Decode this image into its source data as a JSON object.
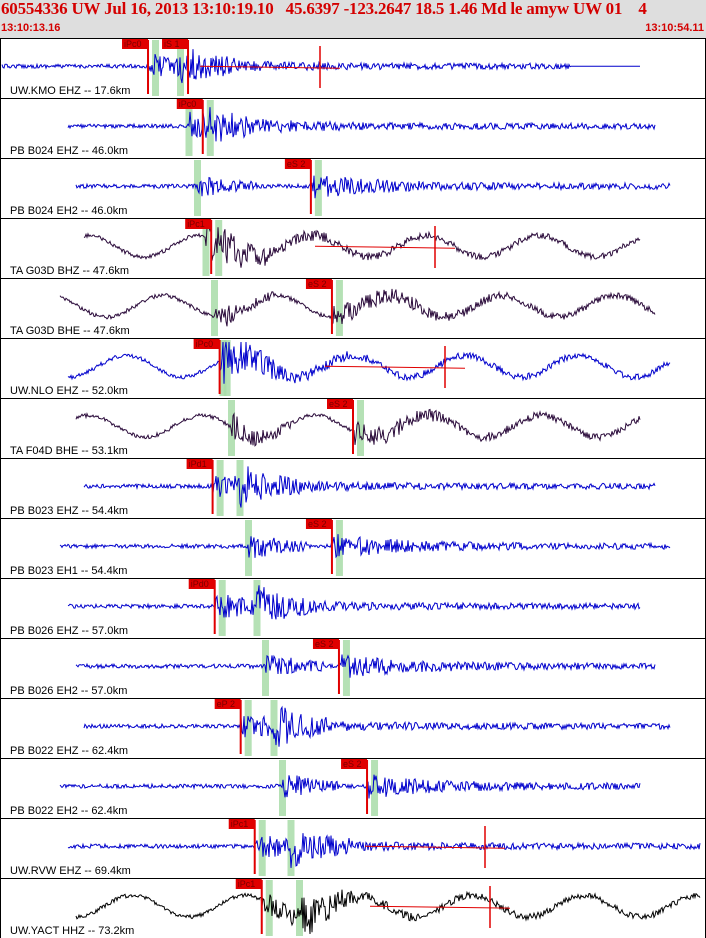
{
  "header": {
    "title": "60554336 UW Jul 16, 2013 13:10:19.10   45.6397 -123.2647 18.5 1.46 Md le amyw UW 01    4",
    "start_time": "13:10:13.16",
    "end_time": "13:10:54.11"
  },
  "colors": {
    "background": "#ffffff",
    "header_bg": "#dedede",
    "header_text": "#d40000",
    "trace_blue": "#0000cc",
    "trace_purple": "#2a0a3a",
    "trace_black": "#000000",
    "pick": "#e00000",
    "window": "#a8dca8"
  },
  "traces": [
    {
      "label": "UW.KMO EHZ -- 17.6km",
      "color": "blue",
      "picks": [
        {
          "text": "iPc0",
          "t": 0.208
        },
        {
          "text": "iS 1",
          "t": 0.265
        }
      ],
      "residual_mark": true,
      "ptail": true
    },
    {
      "label": "PB B024 EHZ -- 46.0km",
      "color": "blue",
      "picks": [
        {
          "text": "iPc0",
          "t": 0.286
        }
      ],
      "residual_mark": false,
      "ptail": false
    },
    {
      "label": "PB B024 EH2 -- 46.0km",
      "color": "blue",
      "picks": [
        {
          "text": "eS 2",
          "t": 0.44
        }
      ],
      "residual_mark": false,
      "ptail": false
    },
    {
      "label": "TA G03D BHZ -- 47.6km",
      "color": "purple",
      "picks": [
        {
          "text": "iPc1",
          "t": 0.298
        }
      ],
      "residual_mark": true,
      "ptail": false
    },
    {
      "label": "TA G03D BHE -- 47.6km",
      "color": "purple",
      "picks": [
        {
          "text": "eS 2",
          "t": 0.47
        }
      ],
      "residual_mark": false,
      "ptail": false
    },
    {
      "label": "UW.NLO EHZ -- 52.0km",
      "color": "blue",
      "picks": [
        {
          "text": "iPc0",
          "t": 0.31
        }
      ],
      "residual_mark": true,
      "ptail": false
    },
    {
      "label": "TA F04D BHE -- 53.1km",
      "color": "purple",
      "picks": [
        {
          "text": "eS 2",
          "t": 0.5
        }
      ],
      "residual_mark": false,
      "ptail": false
    },
    {
      "label": "PB B023 EHZ -- 54.4km",
      "color": "blue",
      "picks": [
        {
          "text": "iPd1",
          "t": 0.3
        }
      ],
      "residual_mark": false,
      "ptail": false
    },
    {
      "label": "PB B023 EH1 -- 54.4km",
      "color": "blue",
      "picks": [
        {
          "text": "eS 2",
          "t": 0.47
        }
      ],
      "residual_mark": false,
      "ptail": false
    },
    {
      "label": "PB B026 EHZ -- 57.0km",
      "color": "blue",
      "picks": [
        {
          "text": "iPd0",
          "t": 0.303
        }
      ],
      "residual_mark": false,
      "ptail": false
    },
    {
      "label": "PB B026 EH2 -- 57.0km",
      "color": "blue",
      "picks": [
        {
          "text": "eS 2",
          "t": 0.48
        }
      ],
      "residual_mark": false,
      "ptail": false
    },
    {
      "label": "PB B022 EHZ -- 62.4km",
      "color": "blue",
      "picks": [
        {
          "text": "eP 2",
          "t": 0.34
        }
      ],
      "residual_mark": false,
      "ptail": false
    },
    {
      "label": "PB B022 EH2 -- 62.4km",
      "color": "blue",
      "picks": [
        {
          "text": "eS 2",
          "t": 0.52
        }
      ],
      "residual_mark": false,
      "ptail": false
    },
    {
      "label": "UW.RVW EHZ -- 69.4km",
      "color": "blue",
      "picks": [
        {
          "text": "iPc1",
          "t": 0.36
        }
      ],
      "residual_mark": true,
      "ptail": false
    },
    {
      "label": "UW.YACT HHZ -- 73.2km",
      "color": "black",
      "picks": [
        {
          "text": "iPc1",
          "t": 0.37
        }
      ],
      "residual_mark": true,
      "ptail": false
    }
  ]
}
